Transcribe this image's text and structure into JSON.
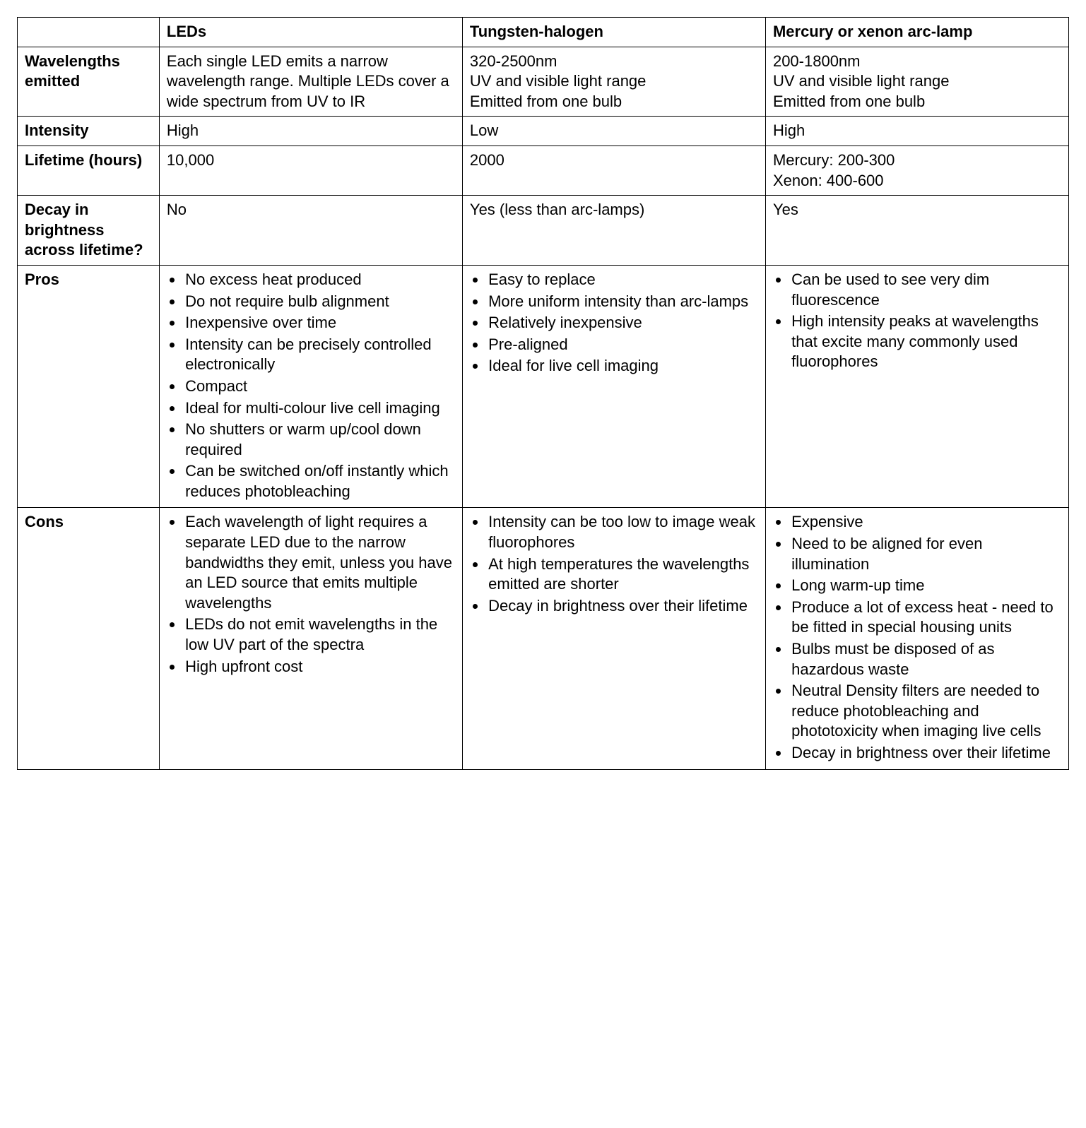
{
  "table": {
    "columns": [
      "",
      "LEDs",
      "Tungsten-halogen",
      "Mercury or xenon arc-lamp"
    ],
    "row_headers": [
      "Wavelengths emitted",
      "Intensity",
      "Lifetime (hours)",
      "Decay in brightness across lifetime?",
      "Pros",
      "Cons"
    ],
    "wavelengths": {
      "leds": "Each single LED emits a narrow wavelength range. Multiple LEDs cover a wide spectrum from UV to IR",
      "tungsten": "320-2500nm\nUV and visible light range\nEmitted from one bulb",
      "arc": "200-1800nm\nUV and visible light range\nEmitted from one bulb"
    },
    "intensity": {
      "leds": "High",
      "tungsten": "Low",
      "arc": "High"
    },
    "lifetime": {
      "leds": "10,000",
      "tungsten": "2000",
      "arc": "Mercury: 200-300\nXenon: 400-600"
    },
    "decay": {
      "leds": "No",
      "tungsten": "Yes (less than arc-lamps)",
      "arc": "Yes"
    },
    "pros": {
      "leds": [
        "No excess heat produced",
        "Do not require bulb alignment",
        "Inexpensive over time",
        "Intensity can be precisely controlled electronically",
        "Compact",
        "Ideal for multi-colour live cell imaging",
        "No shutters or warm up/cool down required",
        "Can be switched on/off instantly which reduces photobleaching"
      ],
      "tungsten": [
        "Easy to replace",
        "More uniform intensity than arc-lamps",
        "Relatively inexpensive",
        "Pre-aligned",
        "Ideal for live cell imaging"
      ],
      "arc": [
        "Can be used to see very dim fluorescence",
        "High intensity peaks at wavelengths that excite many commonly used fluorophores"
      ]
    },
    "cons": {
      "leds": [
        "Each wavelength of light requires a separate LED due to the narrow bandwidths they emit, unless you have an LED source that emits multiple wavelengths",
        "LEDs do not emit wavelengths in the low UV part of the spectra",
        "High upfront cost"
      ],
      "tungsten": [
        "Intensity can be too low to image weak fluorophores",
        "At high temperatures the wavelengths emitted are shorter",
        "Decay in brightness over their lifetime"
      ],
      "arc": [
        "Expensive",
        "Need to be aligned for even illumination",
        "Long warm-up time",
        "Produce a lot of excess heat - need to be fitted in special housing units",
        "Bulbs must be disposed of as hazardous waste",
        "Neutral Density filters are needed to reduce photobleaching and phototoxicity when imaging live cells",
        "Decay in brightness over their lifetime"
      ]
    }
  }
}
